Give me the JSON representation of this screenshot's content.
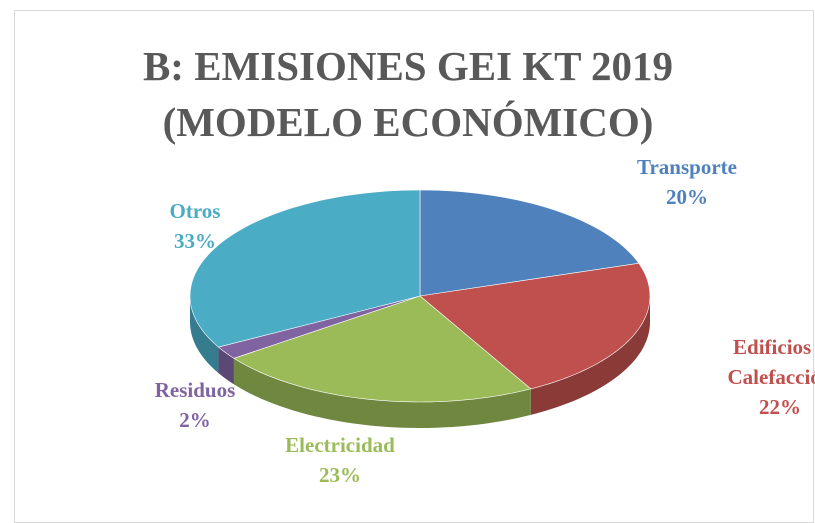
{
  "chart_data": {
    "type": "pie",
    "title": "B: EMISIONES GEI KT 2019 (MODELO ECONÓMICO)",
    "categories": [
      "Transporte",
      "Edificios y Calefacción",
      "Electricidad",
      "Residuos",
      "Otros"
    ],
    "values": [
      20,
      22,
      23,
      2,
      33
    ],
    "value_labels": [
      "20%",
      "22%",
      "23%",
      "2%",
      "33%"
    ],
    "colors": [
      "#4f81bd",
      "#c0504d",
      "#9bbb59",
      "#8064a2",
      "#4bacc6"
    ]
  }
}
